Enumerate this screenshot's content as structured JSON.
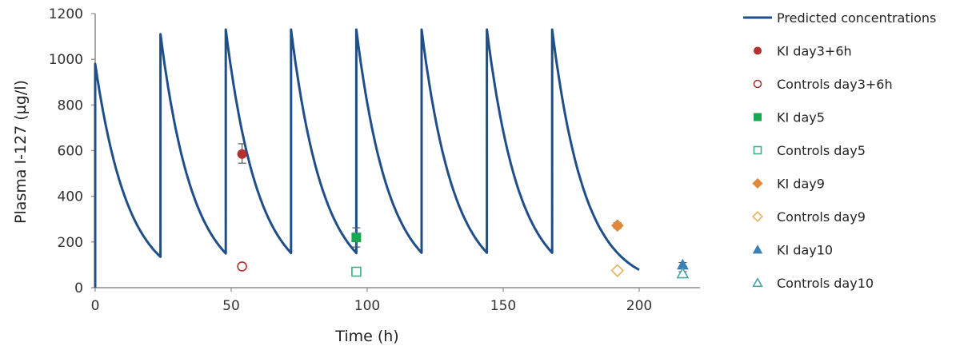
{
  "chart_data": {
    "type": "scatter",
    "xlabel": "Time (h)",
    "ylabel": "Plasma I-127 (µg/l)",
    "xlim": [
      0,
      220
    ],
    "ylim": [
      0,
      1200
    ],
    "x_ticks": [
      0,
      50,
      100,
      150,
      200
    ],
    "y_ticks": [
      0,
      200,
      400,
      600,
      800,
      1000,
      1200
    ],
    "grid": false,
    "legend_position": "right",
    "line": {
      "name": "Predicted concentrations",
      "color": "#1f4e89",
      "dose_times": [
        0,
        24,
        48,
        72,
        96,
        120,
        144,
        168
      ],
      "peaks": [
        980,
        1110,
        1130,
        1130,
        1130,
        1130,
        1130,
        1130
      ],
      "troughs": [
        135,
        150,
        152,
        152,
        153,
        153,
        153
      ],
      "end": {
        "x": 200,
        "y": 78
      }
    },
    "series": [
      {
        "name": "KI day3+6h",
        "marker": "circle",
        "filled": true,
        "color": "#b5302f",
        "x": 54,
        "y": 585,
        "err": [
          545,
          630
        ]
      },
      {
        "name": "Controls day3+6h",
        "marker": "circle",
        "filled": false,
        "color": "#b5302f",
        "x": 54,
        "y": 93,
        "err": [
          80,
          106
        ]
      },
      {
        "name": "KI day5",
        "marker": "square",
        "filled": true,
        "color": "#18a84f",
        "x": 96,
        "y": 220,
        "err": [
          178,
          262
        ]
      },
      {
        "name": "Controls day5",
        "marker": "square",
        "filled": false,
        "color": "#3bb08a",
        "x": 96,
        "y": 70,
        "err": [
          62,
          78
        ]
      },
      {
        "name": "KI day9",
        "marker": "diamond",
        "filled": true,
        "color": "#e0873a",
        "x": 192,
        "y": 272,
        "err": [
          260,
          284
        ]
      },
      {
        "name": "Controls day9",
        "marker": "diamond",
        "filled": false,
        "color": "#e6b25c",
        "x": 192,
        "y": 75,
        "err": [
          67,
          83
        ]
      },
      {
        "name": "KI day10",
        "marker": "triangle",
        "filled": true,
        "color": "#3a7fb8",
        "x": 216,
        "y": 100,
        "err": [
          92,
          110
        ]
      },
      {
        "name": "Controls day10",
        "marker": "triangle",
        "filled": false,
        "color": "#4aa6a2",
        "x": 216,
        "y": 62,
        "err": [
          55,
          70
        ]
      }
    ]
  }
}
